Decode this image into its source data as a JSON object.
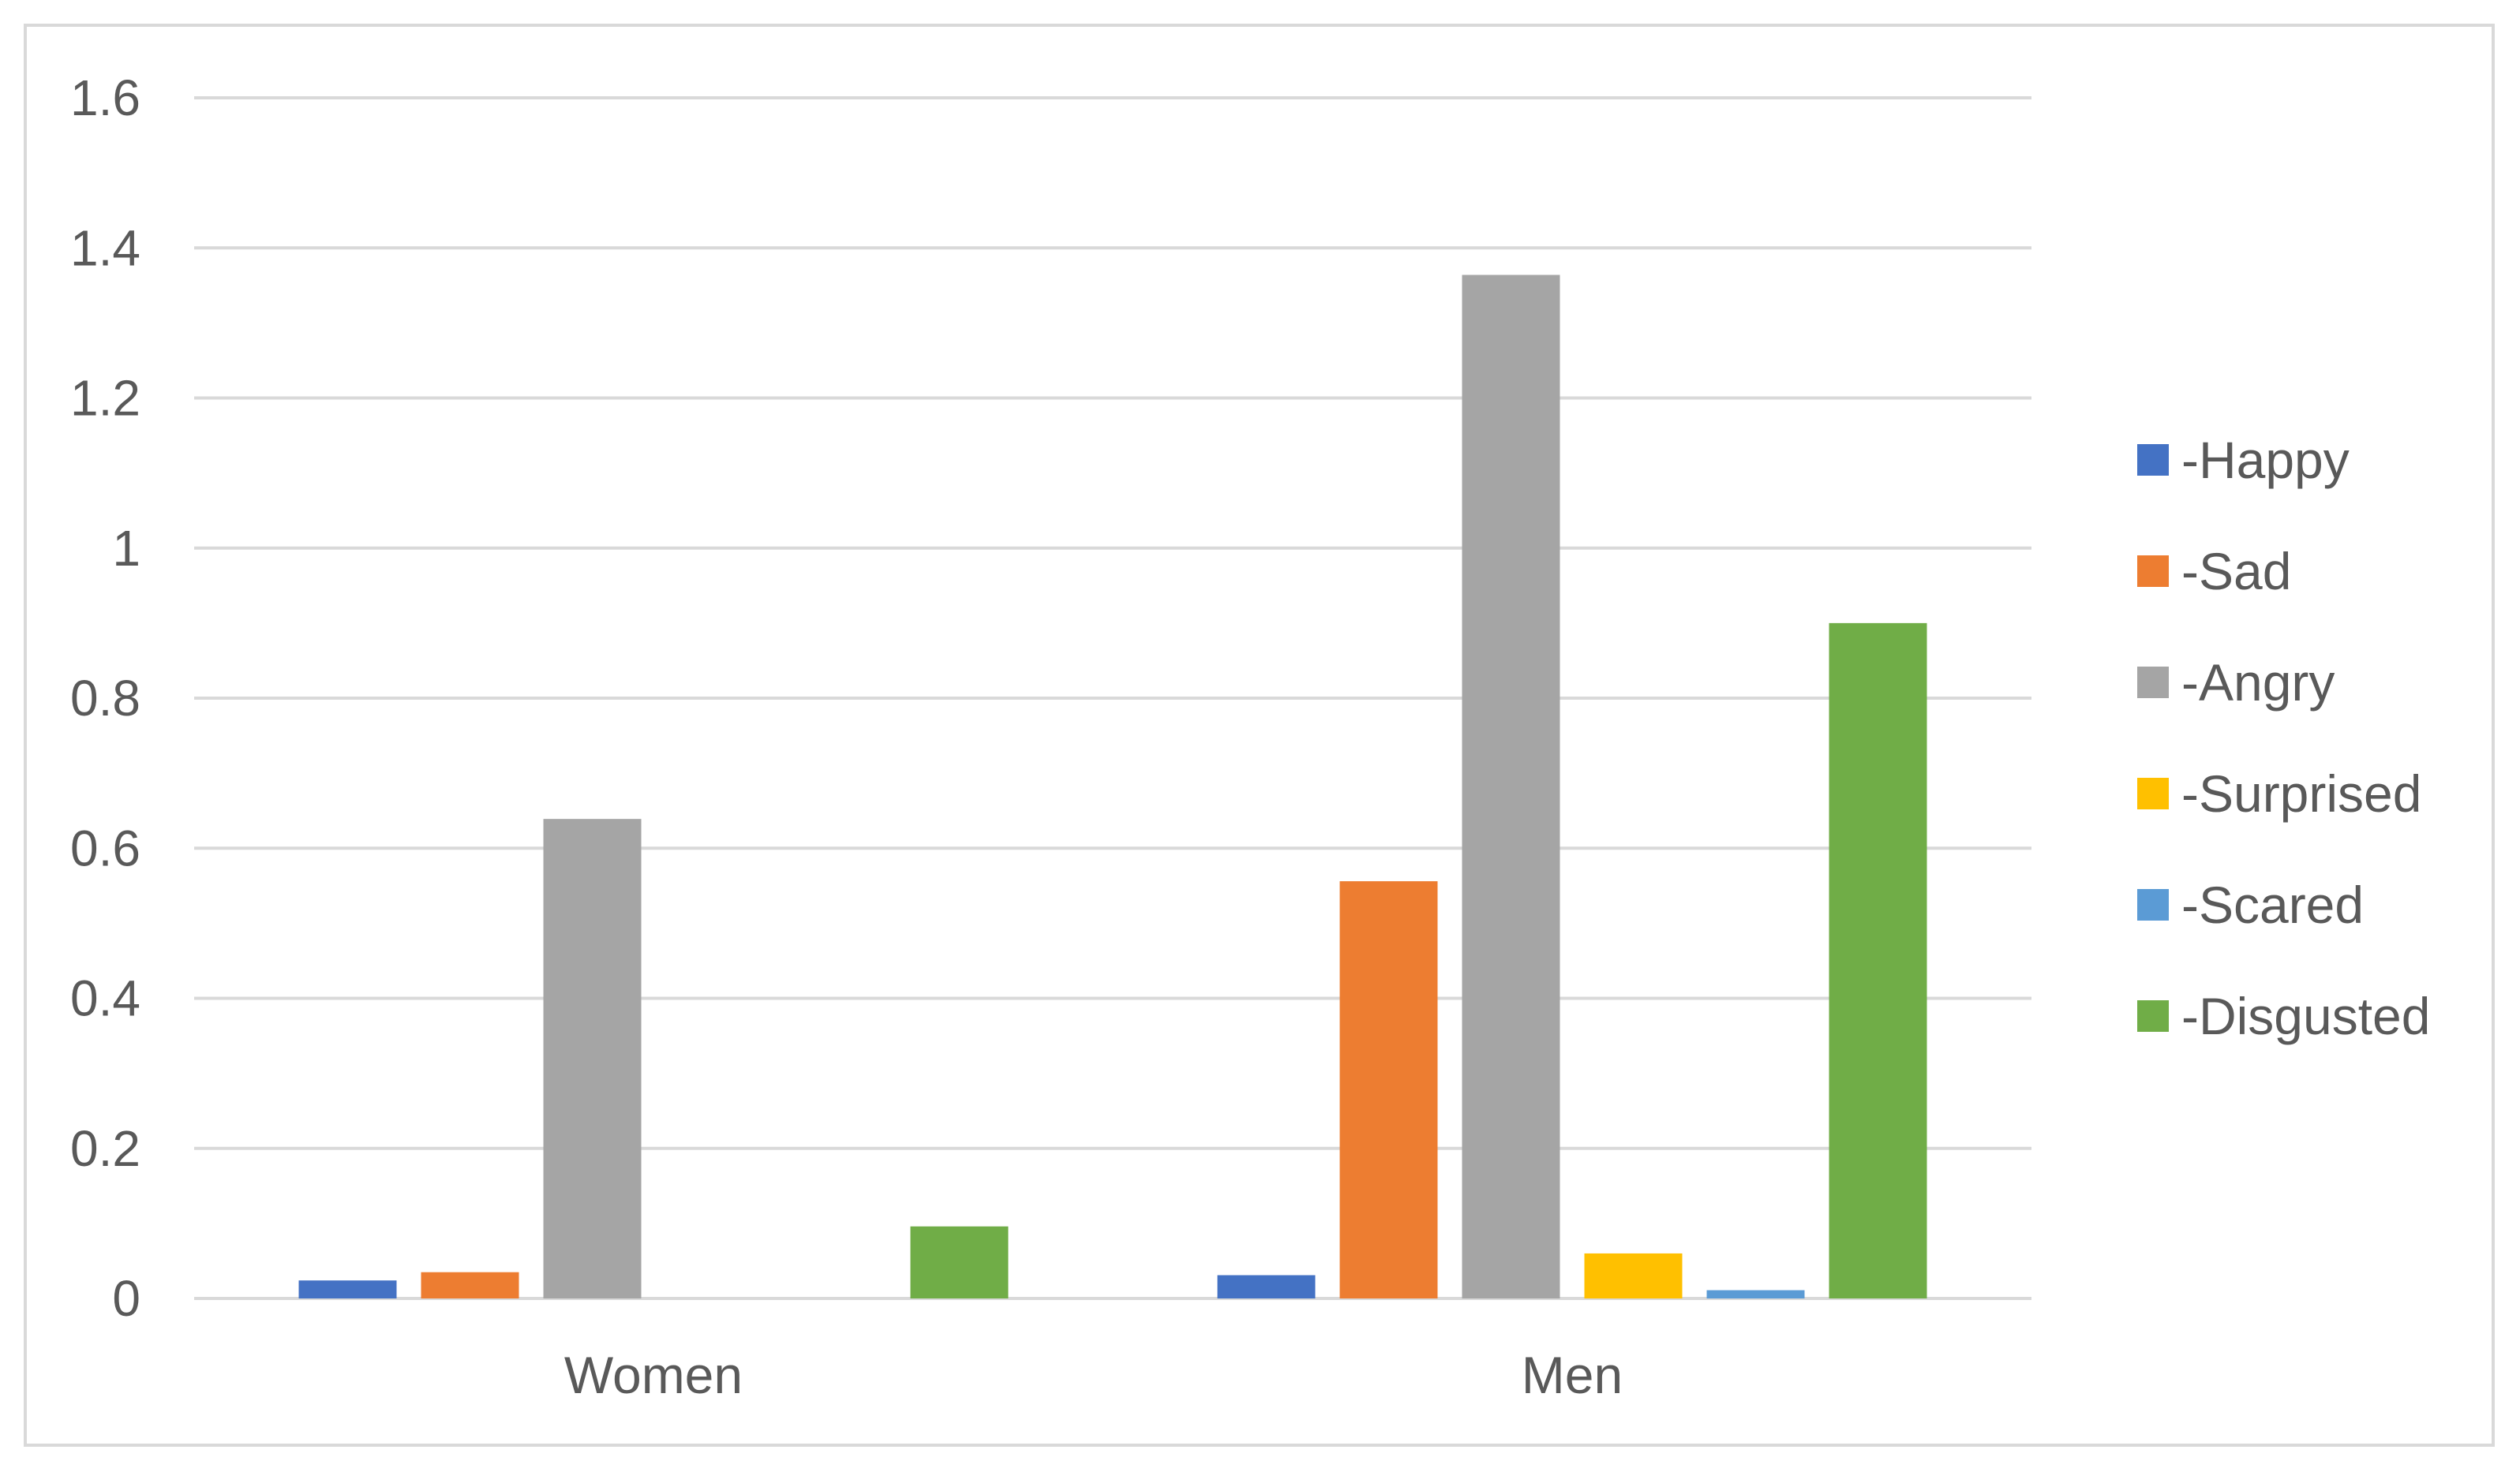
{
  "chart_data": {
    "type": "bar",
    "categories": [
      "Women",
      "Men"
    ],
    "series": [
      {
        "name": "-Happy",
        "color": "#4472c4",
        "values": [
          0.024,
          0.031
        ]
      },
      {
        "name": "-Sad",
        "color": "#ed7d31",
        "values": [
          0.035,
          0.556
        ]
      },
      {
        "name": "-Angry",
        "color": "#a5a5a5",
        "values": [
          0.639,
          1.364
        ]
      },
      {
        "name": "-Surprised",
        "color": "#ffc000",
        "values": [
          0,
          0.06
        ]
      },
      {
        "name": "-Scared",
        "color": "#5b9bd5",
        "values": [
          0,
          0.011
        ]
      },
      {
        "name": "-Disgusted",
        "color": "#70ad47",
        "values": [
          0.096,
          0.9
        ]
      }
    ],
    "yticks": [
      "0",
      "0.2",
      "0.4",
      "0.6",
      "0.8",
      "1",
      "1.2",
      "1.4",
      "1.6"
    ],
    "ylim": [
      0,
      1.6
    ],
    "grid": true,
    "legend_position": "right",
    "title": "",
    "xlabel": "",
    "ylabel": ""
  }
}
